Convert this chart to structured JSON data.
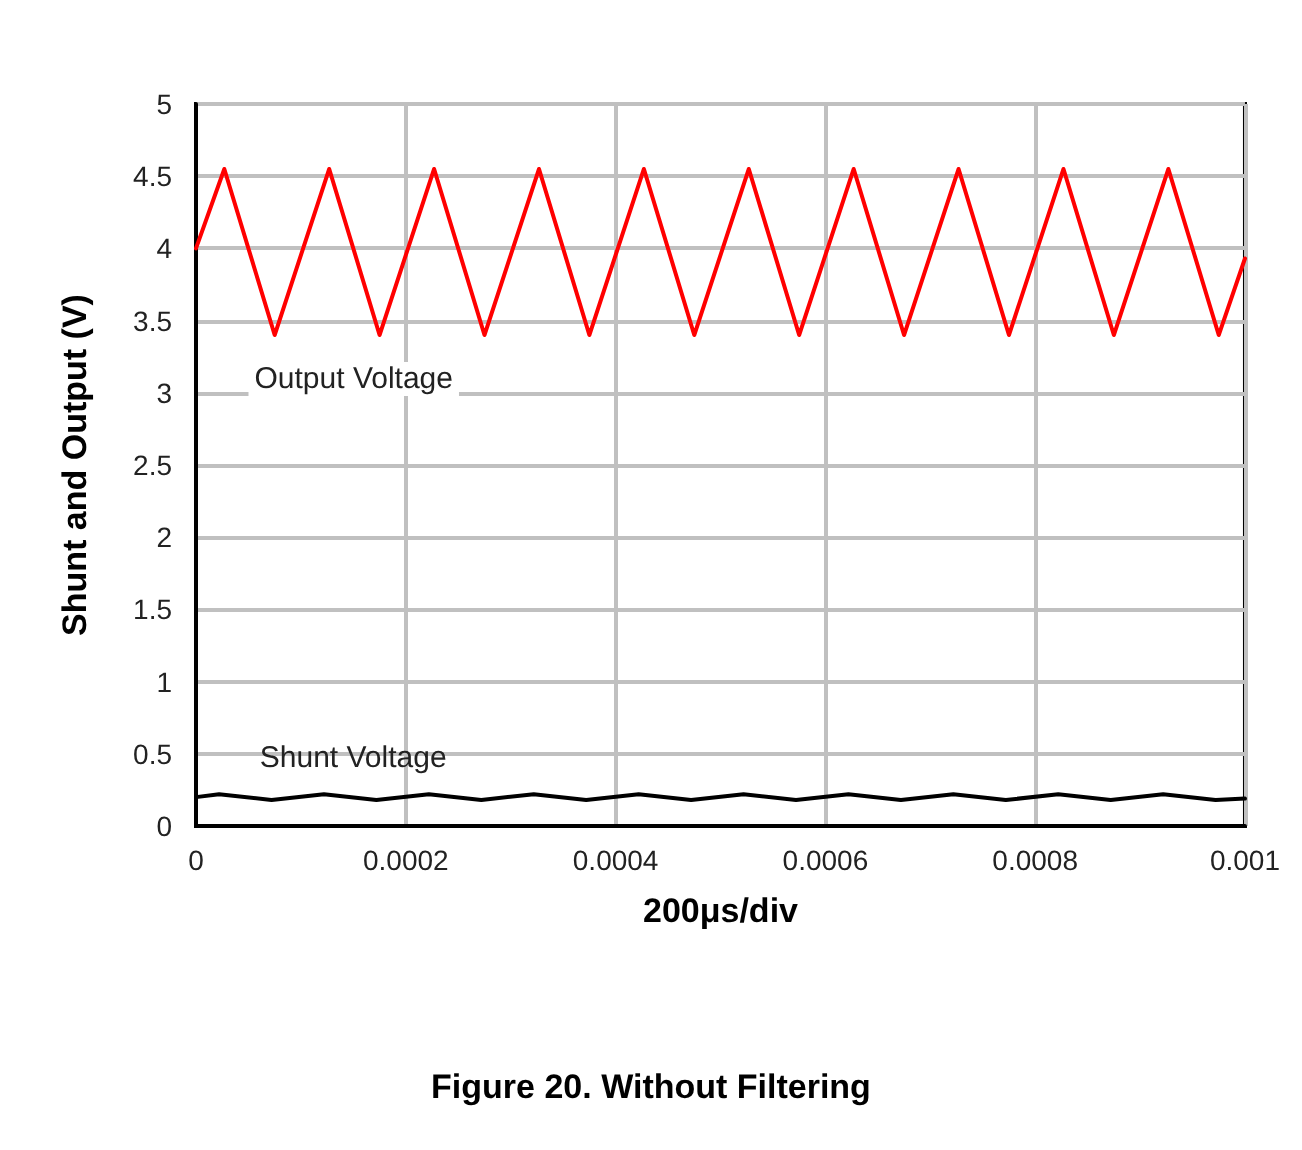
{
  "chart_data": {
    "type": "line",
    "title": "Figure 20. Without Filtering",
    "xlabel": "200μs/div",
    "ylabel": "Shunt and Output (V)",
    "xlim": [
      0,
      0.001
    ],
    "xticks": [
      0,
      0.0002,
      0.0004,
      0.0006,
      0.0008,
      0.001
    ],
    "ylim": [
      0,
      5
    ],
    "yticks": [
      0,
      0.5,
      1,
      1.5,
      2,
      2.5,
      3,
      3.5,
      4,
      4.5,
      5
    ],
    "grid": true,
    "legend": false,
    "marker": "none",
    "line_style": "solid",
    "series": [
      {
        "name": "Output Voltage",
        "color": "#ff0000",
        "x": [
          0,
          2.7e-05,
          7.5e-05,
          0.000127,
          0.000175,
          0.000227,
          0.000275,
          0.000327,
          0.000375,
          0.000427,
          0.000475,
          0.000527,
          0.000575,
          0.000627,
          0.000675,
          0.000727,
          0.000775,
          0.000827,
          0.000875,
          0.000927,
          0.000975,
          0.001
        ],
        "values": [
          4.0,
          4.55,
          3.4,
          4.55,
          3.4,
          4.55,
          3.4,
          4.55,
          3.4,
          4.55,
          3.4,
          4.55,
          3.4,
          4.55,
          3.4,
          4.55,
          3.4,
          4.55,
          3.4,
          4.55,
          3.4,
          3.93
        ]
      },
      {
        "name": "Shunt Voltage",
        "color": "#000000",
        "x": [
          0,
          2.2e-05,
          7.2e-05,
          0.000122,
          0.000172,
          0.000222,
          0.000272,
          0.000322,
          0.000372,
          0.000422,
          0.000472,
          0.000522,
          0.000572,
          0.000622,
          0.000672,
          0.000722,
          0.000772,
          0.000822,
          0.000872,
          0.000922,
          0.000972,
          0.001
        ],
        "values": [
          0.2,
          0.22,
          0.18,
          0.22,
          0.18,
          0.22,
          0.18,
          0.22,
          0.18,
          0.22,
          0.18,
          0.22,
          0.18,
          0.22,
          0.18,
          0.22,
          0.18,
          0.22,
          0.18,
          0.22,
          0.18,
          0.19
        ]
      }
    ]
  }
}
